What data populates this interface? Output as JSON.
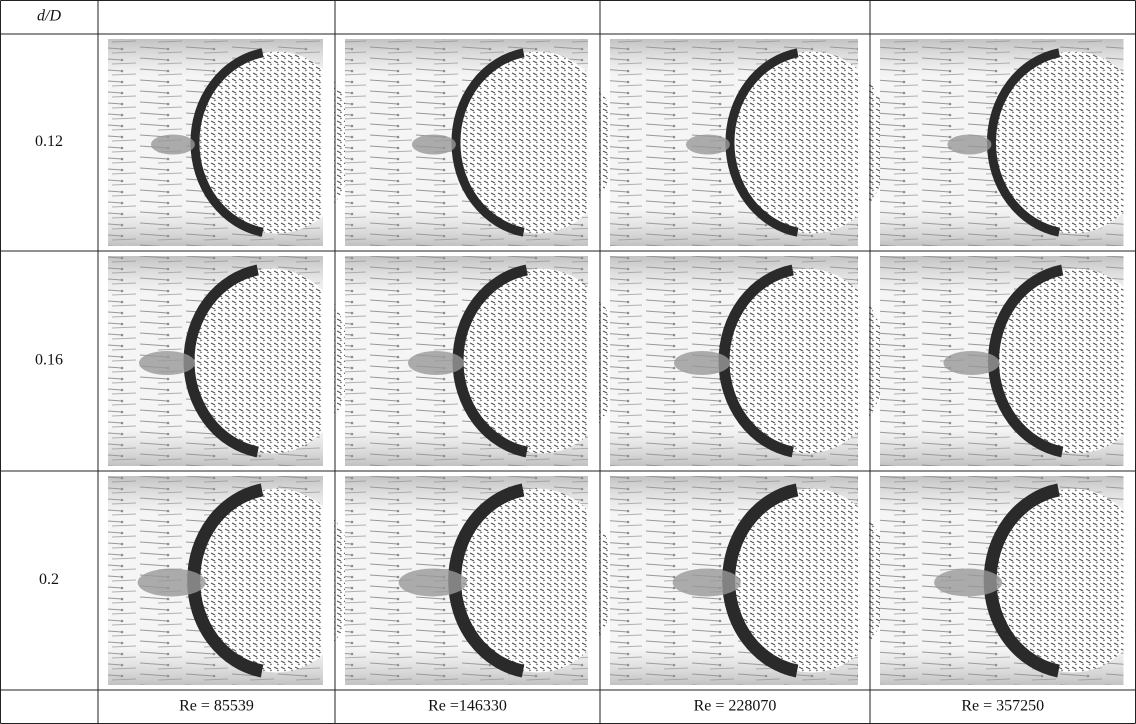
{
  "table": {
    "header": [
      "d/D"
    ],
    "rows": [
      {
        "label": "0.12"
      },
      {
        "label": "0.16"
      },
      {
        "label": "0.2"
      }
    ],
    "footer": [
      "Re = 85539",
      "Re =146330",
      "Re = 228070",
      "Re = 357250"
    ]
  }
}
